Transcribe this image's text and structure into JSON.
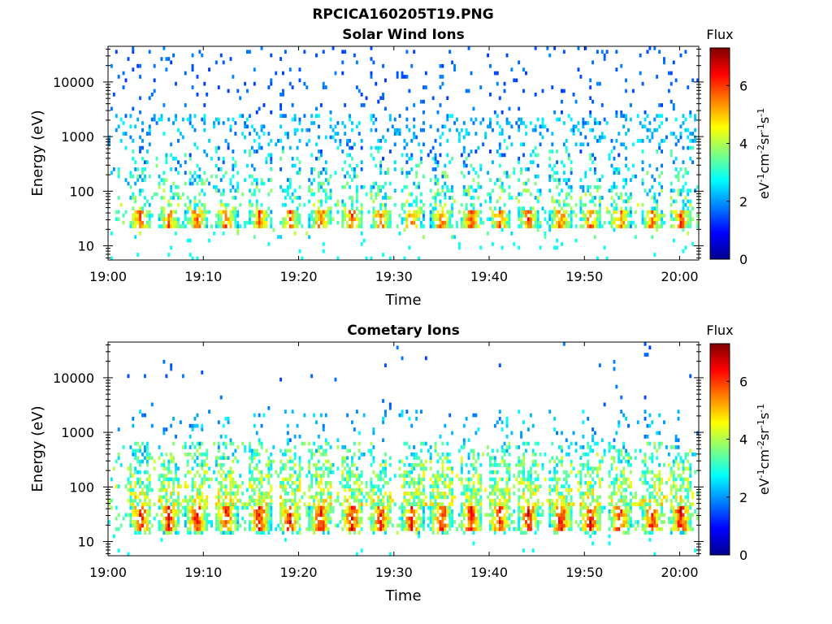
{
  "figure_title": "RPCICA160205T19.PNG",
  "chart_data": [
    {
      "type": "heatmap",
      "title": "Solar Wind Ions",
      "xlabel": "Time",
      "ylabel": "Energy (eV)",
      "yscale": "log",
      "xlim": [
        "19:00",
        "20:02"
      ],
      "ylim": [
        5.5,
        45000
      ],
      "xticks": [
        "19:00",
        "19:10",
        "19:20",
        "19:30",
        "19:40",
        "19:50",
        "20:00"
      ],
      "yticks": [
        "10",
        "100",
        "1000",
        "10000"
      ],
      "colorbar": {
        "title": "Flux",
        "label": "eV-1cm-2sr-1s-1",
        "label_parts": [
          "eV",
          "-1",
          "cm",
          "-2",
          "sr",
          "-1",
          "s",
          "-1"
        ],
        "ticks": [
          "0",
          "2",
          "4",
          "6"
        ],
        "range": [
          0,
          7.3
        ],
        "colormap": "jet"
      },
      "bursts_minutes": [
        3.3,
        6.3,
        9.2,
        12.3,
        15.8,
        19.0,
        22.2,
        25.5,
        28.5,
        31.8,
        34.9,
        38.0,
        41.0,
        44.0,
        47.4,
        50.5,
        53.6,
        57.0,
        60.0
      ],
      "low_band_eV": [
        22,
        45
      ],
      "peak_flux": 6.5,
      "grid": false,
      "legend": "none"
    },
    {
      "type": "heatmap",
      "title": "Cometary Ions",
      "xlabel": "Time",
      "ylabel": "Energy (eV)",
      "yscale": "log",
      "xlim": [
        "19:00",
        "20:02"
      ],
      "ylim": [
        5.5,
        45000
      ],
      "xticks": [
        "19:00",
        "19:10",
        "19:20",
        "19:30",
        "19:40",
        "19:50",
        "20:00"
      ],
      "yticks": [
        "10",
        "100",
        "1000",
        "10000"
      ],
      "colorbar": {
        "title": "Flux",
        "label": "eV-1cm-2sr-1s-1",
        "label_parts": [
          "eV",
          "-1",
          "cm",
          "-2",
          "sr",
          "-1",
          "s",
          "-1"
        ],
        "ticks": [
          "0",
          "2",
          "4",
          "6"
        ],
        "range": [
          0,
          7.3
        ],
        "colormap": "jet"
      },
      "bursts_minutes": [
        3.3,
        6.3,
        9.2,
        12.3,
        15.8,
        19.0,
        22.2,
        25.5,
        28.5,
        31.8,
        34.9,
        38.0,
        41.0,
        44.0,
        47.4,
        50.5,
        53.6,
        57.0,
        60.0
      ],
      "low_band_eV": [
        15,
        45
      ],
      "peak_flux": 7.0,
      "grid": false,
      "legend": "none"
    }
  ]
}
